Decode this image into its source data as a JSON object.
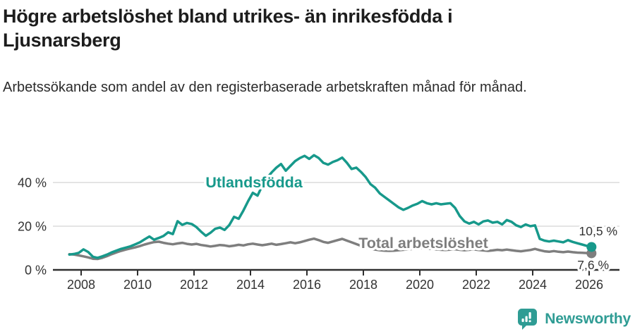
{
  "header": {
    "title_line1": "Högre arbetslöshet bland utrikes- än inrikesfödda i",
    "title_line2": "Ljusnarsberg",
    "subtitle": "Arbetssökande som andel av den registerbaserade arbetskraften månad för månad."
  },
  "footer": {
    "brand": "Newsworthy",
    "brand_color": "#2f9c94",
    "logo_icon": "bar-chart-speech-bubble"
  },
  "chart_data": {
    "type": "line",
    "title": "Högre arbetslöshet bland utrikes- än inrikesfödda i Ljusnarsberg",
    "subtitle": "Arbetssökande som andel av den registerbaserade arbetskraften månad för månad.",
    "unit": "%",
    "frequency": "monthly",
    "x_start": 2007.583,
    "x_step_years": 0.16667,
    "xlim": [
      2007.0,
      2027.0
    ],
    "ylim": [
      0,
      55
    ],
    "grid": "horizontal",
    "grid_color": "#dcdcdc",
    "axis_color": "#2f2f2f",
    "x_ticks": [
      2008,
      2010,
      2012,
      2014,
      2016,
      2018,
      2020,
      2022,
      2024,
      2026
    ],
    "x_tick_labels": [
      "2008",
      "2010",
      "2012",
      "2014",
      "2016",
      "2018",
      "2020",
      "2022",
      "2024",
      "2026"
    ],
    "y_ticks": [
      0,
      20,
      40
    ],
    "y_tick_labels": [
      "0 %",
      "20 %",
      "40 %"
    ],
    "series": [
      {
        "name": "Utlandsfödda",
        "color": "#17998b",
        "end_label": "10,5 %",
        "end_value": 10.5,
        "values": [
          7.0,
          7.3,
          7.8,
          9.4,
          8.2,
          6.0,
          5.5,
          6.2,
          7.0,
          8.0,
          8.8,
          9.6,
          10.2,
          10.8,
          11.7,
          12.6,
          14.0,
          15.3,
          13.8,
          14.6,
          15.5,
          17.2,
          16.4,
          22.3,
          20.6,
          21.5,
          21.0,
          19.6,
          17.5,
          15.6,
          17.0,
          18.8,
          19.4,
          18.3,
          20.5,
          24.3,
          23.4,
          27.2,
          31.5,
          35.3,
          34.0,
          38.5,
          42.0,
          44.6,
          46.8,
          48.5,
          45.4,
          47.6,
          49.8,
          51.2,
          52.2,
          50.8,
          52.5,
          51.2,
          49.0,
          48.2,
          49.4,
          50.2,
          51.4,
          49.0,
          46.2,
          46.8,
          44.8,
          42.5,
          39.3,
          37.6,
          35.0,
          33.4,
          31.8,
          30.2,
          28.6,
          27.5,
          28.4,
          29.5,
          30.3,
          31.5,
          30.5,
          30.0,
          30.5,
          30.0,
          30.3,
          30.5,
          28.4,
          24.6,
          22.2,
          21.2,
          22.0,
          20.8,
          22.2,
          22.6,
          21.6,
          22.0,
          20.8,
          22.8,
          22.0,
          20.4,
          19.6,
          20.8,
          20.0,
          20.4,
          14.2,
          13.4,
          13.0,
          13.4,
          13.0,
          12.6,
          13.6,
          12.8,
          12.2,
          11.6,
          11.0,
          10.5
        ]
      },
      {
        "name": "Total arbetslöshet",
        "color": "#7e7e7e",
        "end_label": "7,6 %",
        "end_value": 7.6,
        "values": [
          7.2,
          7.0,
          6.6,
          6.2,
          5.7,
          5.1,
          5.0,
          5.5,
          6.3,
          7.2,
          8.0,
          8.7,
          9.3,
          9.8,
          10.3,
          10.9,
          11.6,
          12.2,
          12.7,
          12.9,
          12.4,
          12.0,
          11.7,
          12.1,
          12.4,
          11.9,
          11.6,
          11.9,
          11.4,
          11.1,
          10.7,
          11.0,
          11.4,
          11.2,
          10.8,
          11.1,
          11.5,
          11.2,
          11.7,
          12.0,
          11.6,
          11.3,
          11.6,
          12.0,
          11.5,
          11.8,
          12.2,
          12.6,
          12.2,
          12.6,
          13.2,
          13.8,
          14.3,
          13.6,
          12.8,
          12.4,
          13.0,
          13.6,
          14.2,
          13.4,
          12.6,
          11.8,
          11.0,
          10.3,
          9.7,
          9.3,
          9.0,
          8.8,
          8.7,
          8.8,
          9.0,
          9.2,
          9.4,
          9.6,
          9.8,
          10.0,
          9.8,
          9.6,
          9.4,
          9.2,
          9.1,
          9.3,
          9.5,
          9.2,
          9.0,
          9.2,
          9.4,
          9.1,
          8.9,
          8.7,
          8.9,
          9.2,
          9.0,
          9.3,
          9.0,
          8.7,
          8.5,
          8.8,
          9.1,
          9.6,
          9.0,
          8.5,
          8.3,
          8.6,
          8.3,
          8.1,
          8.4,
          8.1,
          7.9,
          7.8,
          7.7,
          7.6
        ]
      }
    ]
  }
}
